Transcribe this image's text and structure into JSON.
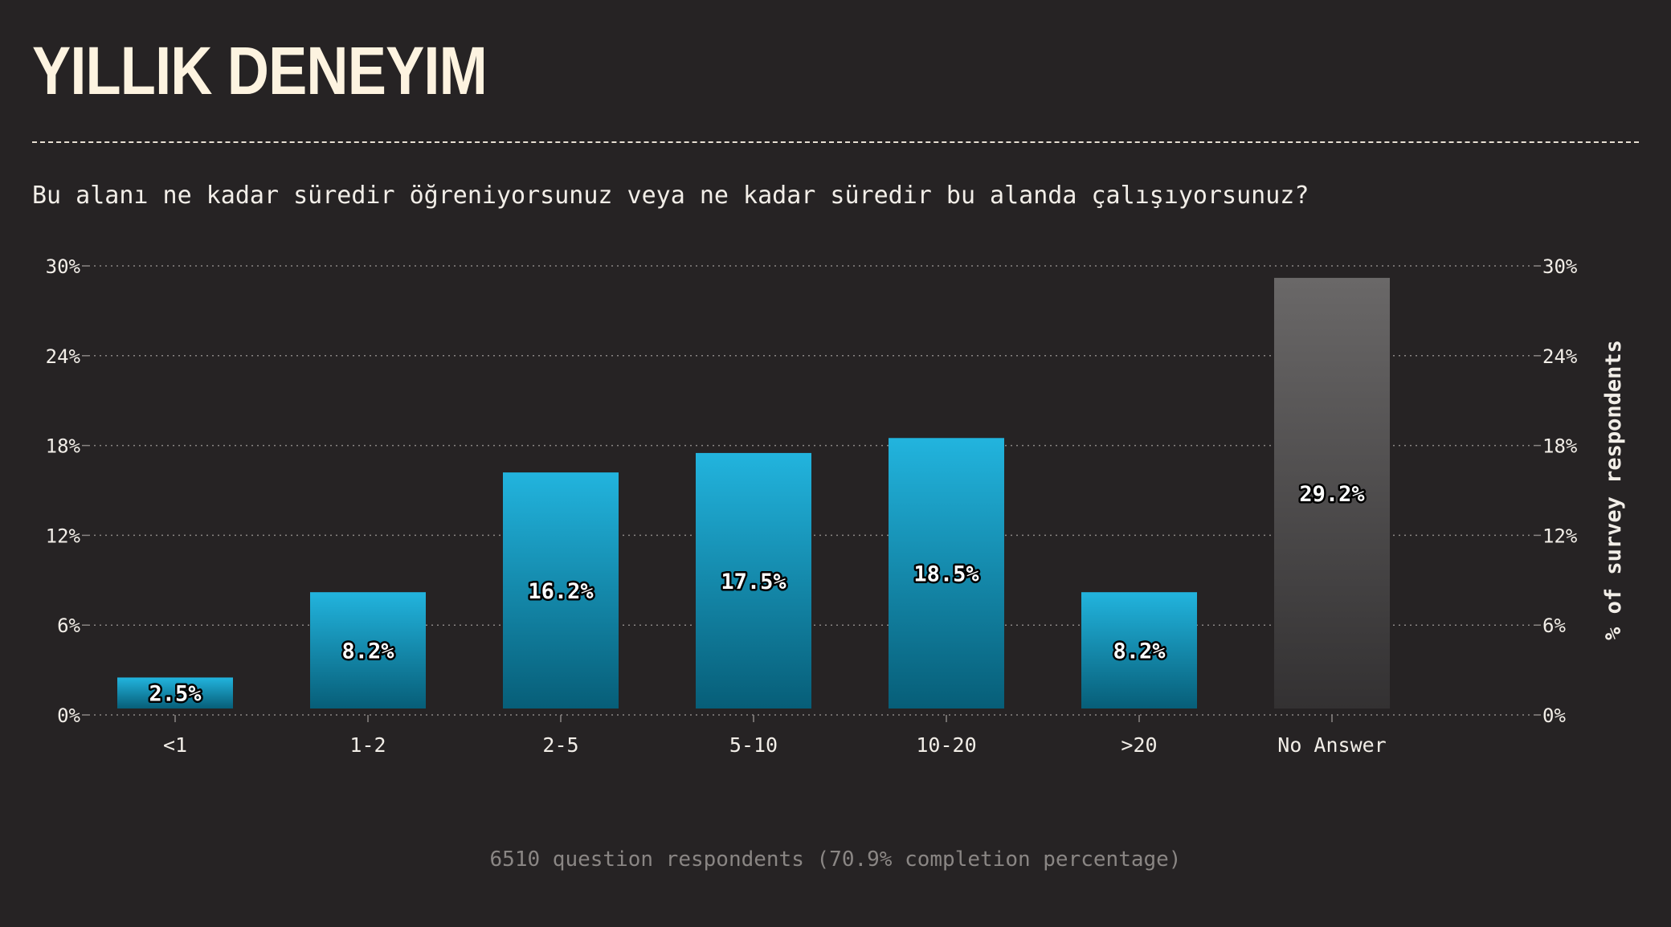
{
  "header": {
    "title": "YILLIK DENEYIM",
    "question": "Bu alanı ne kadar süredir öğreniyorsunuz veya ne kadar süredir bu alanda çalışıyorsunuz?"
  },
  "footer": {
    "note": "6510 question respondents (70.9% completion percentage)"
  },
  "colors": {
    "bar_top": "#22b4de",
    "bar_bottom": "#075e78",
    "na_top": "#6a6868",
    "na_bottom": "#333132",
    "grid": "#8a8684",
    "text": "#f2eee8"
  },
  "chart_data": {
    "type": "bar",
    "categories": [
      "<1",
      "1-2",
      "2-5",
      "5-10",
      "10-20",
      ">20",
      "No Answer"
    ],
    "values": [
      2.5,
      8.2,
      16.2,
      17.5,
      18.5,
      8.2,
      29.2
    ],
    "value_labels": [
      "2.5%",
      "8.2%",
      "16.2%",
      "17.5%",
      "18.5%",
      "8.2%",
      "29.2%"
    ],
    "ylim": [
      0,
      30
    ],
    "yticks": [
      0,
      6,
      12,
      18,
      24,
      30
    ],
    "ytick_labels": [
      "0%",
      "6%",
      "12%",
      "18%",
      "24%",
      "30%"
    ],
    "ylabel_right": "% of survey respondents",
    "grid": true
  }
}
